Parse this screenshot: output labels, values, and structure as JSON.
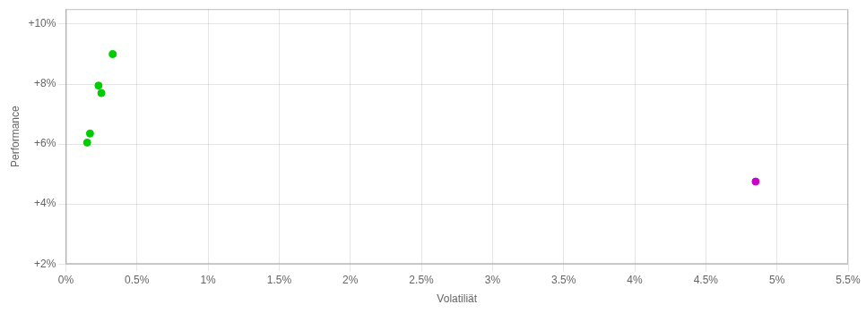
{
  "chart_data": {
    "type": "scatter",
    "xlabel": "Volatiliät",
    "ylabel": "Performance",
    "xlim": [
      0.0,
      0.055
    ],
    "ylim": [
      0.02,
      0.105
    ],
    "xticks": [
      {
        "value": 0.0,
        "label": "0%"
      },
      {
        "value": 0.005,
        "label": "0.5%"
      },
      {
        "value": 0.01,
        "label": "1%"
      },
      {
        "value": 0.015,
        "label": "1.5%"
      },
      {
        "value": 0.02,
        "label": "2%"
      },
      {
        "value": 0.025,
        "label": "2.5%"
      },
      {
        "value": 0.03,
        "label": "3%"
      },
      {
        "value": 0.035,
        "label": "3.5%"
      },
      {
        "value": 0.04,
        "label": "4%"
      },
      {
        "value": 0.045,
        "label": "4.5%"
      },
      {
        "value": 0.05,
        "label": "5%"
      },
      {
        "value": 0.055,
        "label": "5.5%"
      }
    ],
    "yticks": [
      {
        "value": 0.02,
        "label": "+2%"
      },
      {
        "value": 0.04,
        "label": "+4%"
      },
      {
        "value": 0.06,
        "label": "+6%"
      },
      {
        "value": 0.08,
        "label": "+8%"
      },
      {
        "value": 0.1,
        "label": "+10%"
      }
    ],
    "grid": true,
    "series": [
      {
        "color": "#00cc00",
        "x": [
          0.0033,
          0.0023,
          0.0025,
          0.0017,
          0.0015
        ],
        "values": [
          0.09,
          0.0795,
          0.077,
          0.0635,
          0.0605
        ]
      },
      {
        "color": "#cc00cc",
        "x": [
          0.0485
        ],
        "values": [
          0.0475
        ]
      }
    ]
  }
}
